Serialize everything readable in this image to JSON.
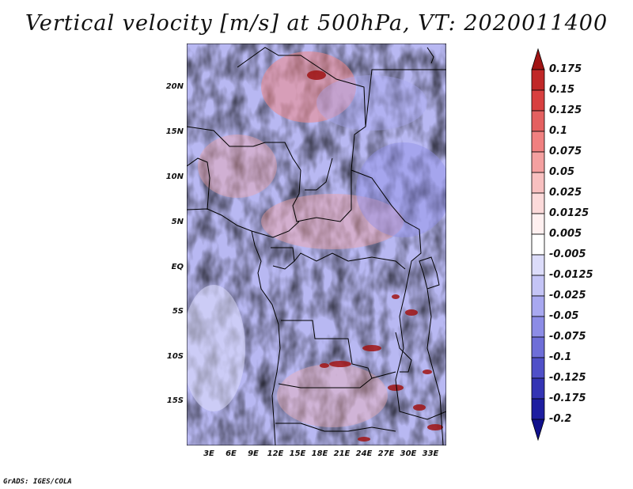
{
  "title": "Vertical velocity [m/s] at 500hPa, VT: 2020011400",
  "footer": "GrADS: IGES/COLA",
  "map": {
    "lat_labels": [
      "20N",
      "15N",
      "10N",
      "5N",
      "EQ",
      "5S",
      "10S",
      "15S"
    ],
    "lon_labels": [
      "3E",
      "6E",
      "9E",
      "12E",
      "15E",
      "18E",
      "21E",
      "24E",
      "27E",
      "30E",
      "33E"
    ]
  },
  "colorbar": {
    "levels": [
      "0.175",
      "0.15",
      "0.125",
      "0.1",
      "0.075",
      "0.05",
      "0.025",
      "0.0125",
      "0.005",
      "-0.005",
      "-0.0125",
      "-0.025",
      "-0.05",
      "-0.075",
      "-0.1",
      "-0.125",
      "-0.175",
      "-0.2"
    ],
    "colors": [
      "#a01414",
      "#c02828",
      "#d84040",
      "#e46060",
      "#f08080",
      "#f4a0a0",
      "#f8c0c0",
      "#fcdada",
      "#fff0f0",
      "#ffffff",
      "#dcdcfa",
      "#c4c4f6",
      "#a8a8f0",
      "#8c8ce6",
      "#6e6ed8",
      "#5050c8",
      "#3434b4",
      "#1e1ea0",
      "#10108c"
    ]
  }
}
